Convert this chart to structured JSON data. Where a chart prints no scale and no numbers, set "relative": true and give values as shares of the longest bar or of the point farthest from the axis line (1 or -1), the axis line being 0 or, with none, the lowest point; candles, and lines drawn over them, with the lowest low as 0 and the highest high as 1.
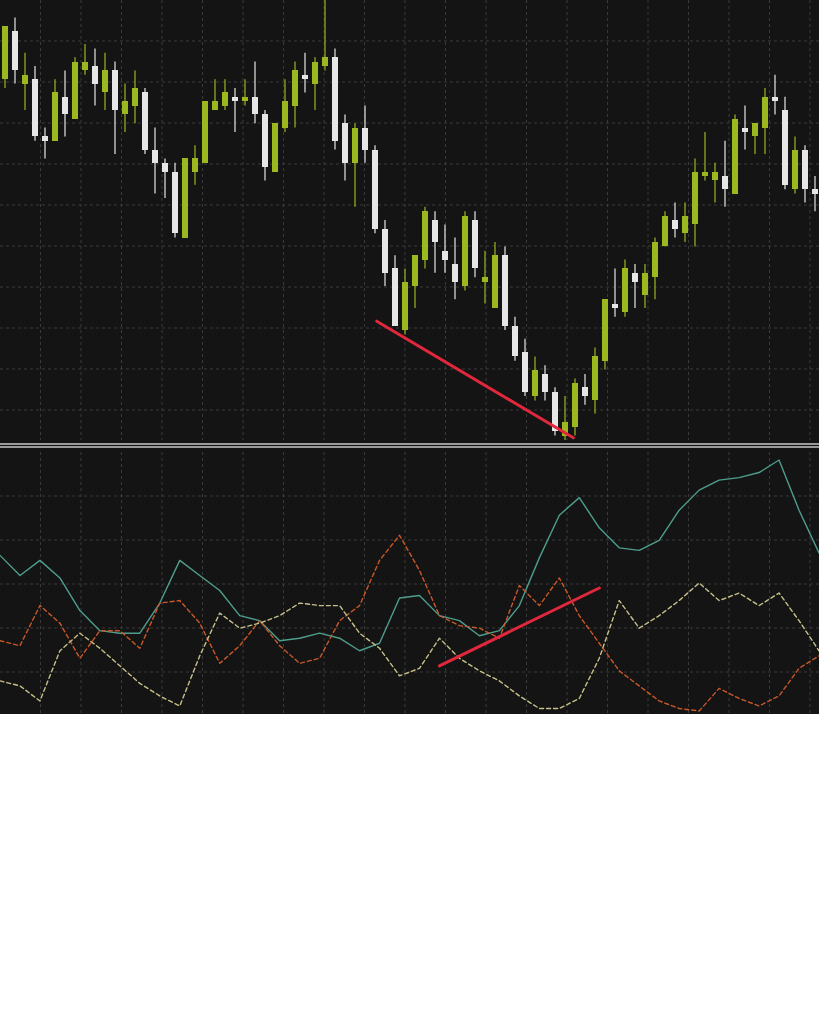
{
  "chart_data": [
    {
      "type": "candlestick",
      "relative": true,
      "grid": true,
      "categories": [
        null,
        null,
        null,
        null,
        null,
        null,
        null,
        null,
        null,
        null,
        null,
        null,
        null,
        null,
        null,
        null,
        null,
        null,
        null,
        null,
        null,
        null,
        null,
        null,
        null,
        null,
        null,
        null,
        null,
        null,
        null,
        null,
        null,
        null,
        null,
        null,
        null,
        null,
        null,
        null,
        null,
        null,
        null,
        null,
        null,
        null,
        null,
        null,
        null,
        null,
        null,
        null,
        null,
        null,
        null,
        null,
        null,
        null,
        null,
        null,
        null,
        null,
        null,
        null,
        null,
        null,
        null,
        null,
        null,
        null,
        null,
        null,
        null,
        null,
        null,
        null,
        null,
        null,
        null,
        null,
        null,
        null
      ],
      "ohlc": [
        [
          0.82,
          0.94,
          0.8,
          0.94
        ],
        [
          0.93,
          0.96,
          0.81,
          0.84
        ],
        [
          0.81,
          0.88,
          0.75,
          0.83
        ],
        [
          0.82,
          0.85,
          0.68,
          0.69
        ],
        [
          0.69,
          0.71,
          0.64,
          0.68
        ],
        [
          0.68,
          0.82,
          0.68,
          0.79
        ],
        [
          0.78,
          0.84,
          0.69,
          0.74
        ],
        [
          0.73,
          0.87,
          0.73,
          0.86
        ],
        [
          0.84,
          0.9,
          0.83,
          0.86
        ],
        [
          0.85,
          0.89,
          0.76,
          0.81
        ],
        [
          0.79,
          0.88,
          0.75,
          0.84
        ],
        [
          0.84,
          0.86,
          0.65,
          0.75
        ],
        [
          0.74,
          0.81,
          0.7,
          0.77
        ],
        [
          0.76,
          0.84,
          0.72,
          0.8
        ],
        [
          0.79,
          0.8,
          0.65,
          0.66
        ],
        [
          0.66,
          0.71,
          0.56,
          0.63
        ],
        [
          0.63,
          0.64,
          0.55,
          0.61
        ],
        [
          0.61,
          0.63,
          0.46,
          0.47
        ],
        [
          0.46,
          0.64,
          0.46,
          0.64
        ],
        [
          0.61,
          0.67,
          0.58,
          0.64
        ],
        [
          0.63,
          0.77,
          0.63,
          0.77
        ],
        [
          0.75,
          0.82,
          0.75,
          0.77
        ],
        [
          0.76,
          0.82,
          0.75,
          0.79
        ],
        [
          0.78,
          0.8,
          0.7,
          0.77
        ],
        [
          0.77,
          0.82,
          0.76,
          0.78
        ],
        [
          0.78,
          0.86,
          0.72,
          0.74
        ],
        [
          0.74,
          0.75,
          0.59,
          0.62
        ],
        [
          0.61,
          0.72,
          0.61,
          0.72
        ],
        [
          0.71,
          0.82,
          0.7,
          0.77
        ],
        [
          0.76,
          0.86,
          0.71,
          0.84
        ],
        [
          0.83,
          0.88,
          0.79,
          0.82
        ],
        [
          0.81,
          0.87,
          0.75,
          0.86
        ],
        [
          0.85,
          1,
          0.84,
          0.87
        ],
        [
          0.87,
          0.89,
          0.66,
          0.68
        ],
        [
          0.72,
          0.74,
          0.59,
          0.63
        ],
        [
          0.63,
          0.72,
          0.53,
          0.71
        ],
        [
          0.71,
          0.76,
          0.63,
          0.66
        ],
        [
          0.66,
          0.67,
          0.47,
          0.48
        ],
        [
          0.48,
          0.5,
          0.35,
          0.38
        ],
        [
          0.39,
          0.42,
          0.26,
          0.26
        ],
        [
          0.25,
          0.39,
          0.24,
          0.36
        ],
        [
          0.35,
          0.42,
          0.3,
          0.42
        ],
        [
          0.41,
          0.53,
          0.39,
          0.52
        ],
        [
          0.5,
          0.52,
          0.38,
          0.45
        ],
        [
          0.43,
          0.49,
          0.38,
          0.41
        ],
        [
          0.4,
          0.46,
          0.32,
          0.36
        ],
        [
          0.35,
          0.52,
          0.34,
          0.51
        ],
        [
          0.5,
          0.52,
          0.37,
          0.39
        ],
        [
          0.36,
          0.43,
          0.31,
          0.37
        ],
        [
          0.3,
          0.45,
          0.3,
          0.42
        ],
        [
          0.42,
          0.44,
          0.25,
          0.26
        ],
        [
          0.26,
          0.28,
          0.18,
          0.19
        ],
        [
          0.2,
          0.23,
          0.1,
          0.11
        ],
        [
          0.1,
          0.19,
          0.09,
          0.16
        ],
        [
          0.15,
          0.17,
          0.09,
          0.11
        ],
        [
          0.11,
          0.12,
          0.01,
          0.02
        ],
        [
          0.01,
          0.1,
          0,
          0.04
        ],
        [
          0.03,
          0.14,
          0.01,
          0.13
        ],
        [
          0.12,
          0.15,
          0.08,
          0.1
        ],
        [
          0.09,
          0.21,
          0.06,
          0.19
        ],
        [
          0.18,
          0.32,
          0.16,
          0.32
        ],
        [
          0.31,
          0.39,
          0.28,
          0.3
        ],
        [
          0.29,
          0.41,
          0.28,
          0.39
        ],
        [
          0.38,
          0.4,
          0.3,
          0.36
        ],
        [
          0.33,
          0.4,
          0.3,
          0.38
        ],
        [
          0.37,
          0.46,
          0.32,
          0.45
        ],
        [
          0.44,
          0.52,
          0.44,
          0.51
        ],
        [
          0.5,
          0.54,
          0.46,
          0.48
        ],
        [
          0.47,
          0.54,
          0.45,
          0.51
        ],
        [
          0.49,
          0.64,
          0.44,
          0.61
        ],
        [
          0.6,
          0.7,
          0.59,
          0.61
        ],
        [
          0.59,
          0.63,
          0.54,
          0.61
        ],
        [
          0.6,
          0.68,
          0.53,
          0.57
        ],
        [
          0.56,
          0.74,
          0.56,
          0.73
        ],
        [
          0.71,
          0.76,
          0.66,
          0.7
        ],
        [
          0.69,
          0.72,
          0.65,
          0.72
        ],
        [
          0.71,
          0.8,
          0.65,
          0.78
        ],
        [
          0.78,
          0.83,
          0.74,
          0.77
        ],
        [
          0.75,
          0.78,
          0.57,
          0.58
        ],
        [
          0.57,
          0.69,
          0.56,
          0.66
        ],
        [
          0.66,
          0.67,
          0.54,
          0.57
        ],
        [
          0.57,
          0.6,
          0.52,
          0.56
        ]
      ],
      "colors": [
        "#9bb81e",
        "#e6e6e6",
        "#9bb81e",
        "#e6e6e6",
        "#e6e6e6",
        "#9bb81e",
        "#e6e6e6",
        "#9bb81e",
        "#9bb81e",
        "#e6e6e6",
        "#9bb81e",
        "#e6e6e6",
        "#9bb81e",
        "#9bb81e",
        "#e6e6e6",
        "#e6e6e6",
        "#e6e6e6",
        "#e6e6e6",
        "#9bb81e",
        "#9bb81e",
        "#9bb81e",
        "#9bb81e",
        "#9bb81e",
        "#e6e6e6",
        "#9bb81e",
        "#e6e6e6",
        "#e6e6e6",
        "#9bb81e",
        "#9bb81e",
        "#9bb81e",
        "#e6e6e6",
        "#9bb81e",
        "#9bb81e",
        "#e6e6e6",
        "#e6e6e6",
        "#9bb81e",
        "#e6e6e6",
        "#e6e6e6",
        "#e6e6e6",
        "#e6e6e6",
        "#9bb81e",
        "#9bb81e",
        "#9bb81e",
        "#e6e6e6",
        "#e6e6e6",
        "#e6e6e6",
        "#9bb81e",
        "#e6e6e6",
        "#9bb81e",
        "#9bb81e",
        "#e6e6e6",
        "#e6e6e6",
        "#e6e6e6",
        "#9bb81e",
        "#e6e6e6",
        "#e6e6e6",
        "#9bb81e",
        "#9bb81e",
        "#e6e6e6",
        "#9bb81e",
        "#9bb81e",
        "#e6e6e6",
        "#9bb81e",
        "#e6e6e6",
        "#9bb81e",
        "#9bb81e",
        "#9bb81e",
        "#e6e6e6",
        "#9bb81e",
        "#9bb81e",
        "#9bb81e",
        "#9bb81e",
        "#e6e6e6",
        "#9bb81e",
        "#e6e6e6",
        "#9bb81e",
        "#9bb81e",
        "#e6e6e6",
        "#e6e6e6",
        "#9bb81e",
        "#e6e6e6",
        "#e6e6e6"
      ]
    },
    {
      "type": "line",
      "relative": true,
      "grid": true,
      "categories": [
        null,
        null,
        null,
        null,
        null,
        null,
        null,
        null,
        null,
        null,
        null,
        null,
        null,
        null,
        null,
        null,
        null,
        null,
        null,
        null,
        null,
        null,
        null,
        null,
        null,
        null,
        null,
        null,
        null,
        null,
        null,
        null,
        null,
        null,
        null,
        null,
        null,
        null,
        null,
        null,
        null,
        null
      ],
      "series": [
        {
          "color": "#4e9e8e",
          "line_style": "solid",
          "values": [
            0.62,
            0.54,
            0.6,
            0.53,
            0.4,
            0.32,
            0.31,
            0.31,
            0.43,
            0.6,
            0.54,
            0.48,
            0.38,
            0.36,
            0.28,
            0.29,
            0.31,
            0.29,
            0.24,
            0.27,
            0.45,
            0.46,
            0.38,
            0.36,
            0.3,
            0.32,
            0.42,
            0.61,
            0.78,
            0.85,
            0.73,
            0.65,
            0.64,
            0.68,
            0.8,
            0.88,
            0.92,
            0.93,
            0.95,
            1.0,
            0.8,
            0.63
          ]
        },
        {
          "color": "#c8582a",
          "line_style": "dashed",
          "values": [
            0.28,
            0.26,
            0.42,
            0.35,
            0.21,
            0.32,
            0.32,
            0.25,
            0.43,
            0.44,
            0.35,
            0.19,
            0.26,
            0.36,
            0.26,
            0.19,
            0.21,
            0.36,
            0.42,
            0.6,
            0.7,
            0.56,
            0.38,
            0.34,
            0.33,
            0.29,
            0.5,
            0.42,
            0.53,
            0.38,
            0.27,
            0.16,
            0.1,
            0.04,
            0.01,
            0,
            0.09,
            0.05,
            0.02,
            0.06,
            0.17,
            0.22
          ]
        },
        {
          "color": "#c8c08a",
          "line_style": "dashed",
          "values": [
            0.12,
            0.1,
            0.04,
            0.24,
            0.31,
            0.25,
            0.18,
            0.11,
            0.06,
            0.02,
            0.22,
            0.39,
            0.33,
            0.35,
            0.38,
            0.43,
            0.42,
            0.42,
            0.31,
            0.25,
            0.14,
            0.17,
            0.29,
            0.21,
            0.16,
            0.12,
            0.06,
            0.01,
            0.01,
            0.05,
            0.21,
            0.44,
            0.33,
            0.38,
            0.44,
            0.51,
            0.44,
            0.47,
            0.42,
            0.47,
            0.36,
            0.24
          ]
        },
        {
          "color": "#e0283c",
          "line_style": "solid",
          "values": [
            null,
            null,
            null,
            null,
            null,
            null,
            null,
            null,
            null,
            null,
            null,
            null,
            null,
            null,
            null,
            null,
            null,
            null,
            null,
            null,
            null,
            null,
            0.18,
            null,
            null,
            null,
            null,
            null,
            null,
            null,
            0.49,
            null,
            null,
            null,
            null,
            null,
            null,
            null,
            null,
            null,
            null,
            null
          ]
        }
      ]
    }
  ]
}
